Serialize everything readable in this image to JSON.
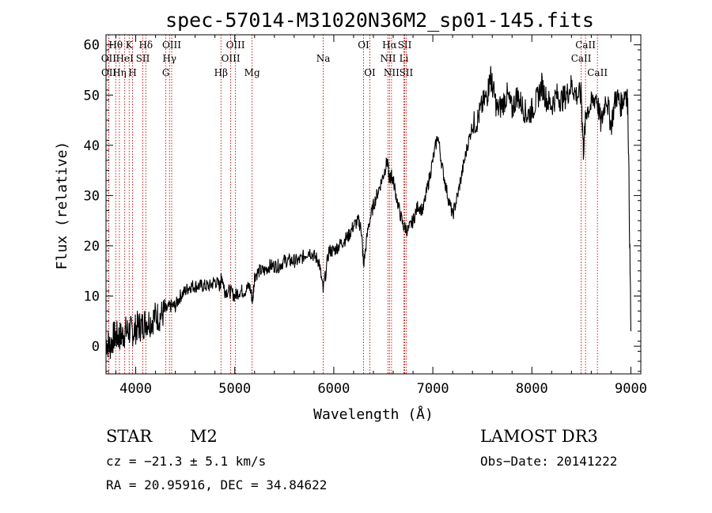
{
  "chart_data": {
    "type": "line",
    "title": "spec-57014-M31020N36M2_sp01-145.fits",
    "xlabel": "Wavelength (Å)",
    "ylabel": "Flux (relative)",
    "xlim": [
      3700,
      9100
    ],
    "ylim": [
      -5.5,
      62
    ],
    "xticks": [
      4000,
      5000,
      6000,
      7000,
      8000,
      9000
    ],
    "yticks": [
      0,
      10,
      20,
      30,
      40,
      50,
      60
    ],
    "grid": false,
    "series": [
      {
        "name": "spectrum",
        "x": [
          3700,
          3740,
          3780,
          3820,
          3860,
          3900,
          3940,
          3980,
          4020,
          4060,
          4100,
          4150,
          4200,
          4250,
          4300,
          4350,
          4400,
          4450,
          4500,
          4550,
          4600,
          4650,
          4700,
          4750,
          4800,
          4850,
          4870,
          4900,
          4950,
          5000,
          5050,
          5100,
          5150,
          5180,
          5200,
          5250,
          5300,
          5350,
          5400,
          5450,
          5500,
          5550,
          5600,
          5650,
          5700,
          5750,
          5800,
          5850,
          5893,
          5950,
          6000,
          6050,
          6100,
          6150,
          6200,
          6250,
          6280,
          6300,
          6350,
          6400,
          6450,
          6500,
          6540,
          6563,
          6580,
          6600,
          6650,
          6700,
          6750,
          6800,
          6850,
          6900,
          6950,
          7000,
          7050,
          7100,
          7150,
          7200,
          7250,
          7300,
          7350,
          7400,
          7450,
          7500,
          7550,
          7580,
          7600,
          7650,
          7700,
          7750,
          7800,
          7850,
          7900,
          7950,
          8000,
          8050,
          8100,
          8150,
          8200,
          8250,
          8300,
          8350,
          8400,
          8450,
          8500,
          8520,
          8550,
          8600,
          8650,
          8700,
          8750,
          8800,
          8850,
          8900,
          8950,
          8970,
          9000
        ],
        "values": [
          1,
          0,
          2,
          2,
          2,
          3,
          3,
          3,
          4,
          4,
          5,
          5,
          6,
          6,
          7,
          8,
          8,
          10,
          11,
          12,
          12,
          12,
          12,
          12,
          13,
          12,
          14,
          11,
          11,
          10,
          11,
          11,
          12,
          9,
          14,
          15,
          15,
          16,
          16,
          16,
          17,
          17,
          17,
          17,
          18,
          19,
          18,
          17,
          11,
          19,
          19,
          20,
          21,
          22,
          24,
          25,
          23,
          16,
          24,
          28,
          31,
          34,
          37,
          33,
          34,
          33,
          28,
          24,
          23,
          25,
          28,
          27,
          32,
          37,
          42,
          35,
          30,
          26,
          30,
          35,
          40,
          44,
          45,
          48,
          50,
          54,
          52,
          47,
          48,
          50,
          47,
          50,
          48,
          46,
          47,
          49,
          52,
          49,
          48,
          50,
          49,
          50,
          52,
          50,
          50,
          39,
          47,
          48,
          50,
          44,
          50,
          44,
          50,
          48,
          51,
          48,
          3
        ]
      }
    ],
    "line_labels": [
      {
        "text": "Hθ",
        "wl": 3798,
        "row": 1
      },
      {
        "text": "Hη",
        "wl": 3835,
        "row": 3
      },
      {
        "text": "OII",
        "wl": 3727,
        "row": 2
      },
      {
        "text": "OII",
        "wl": 3729,
        "row": 3
      },
      {
        "text": "HeI",
        "wl": 3889,
        "row": 2
      },
      {
        "text": "K",
        "wl": 3934,
        "row": 1
      },
      {
        "text": "H",
        "wl": 3968,
        "row": 3
      },
      {
        "text": "SII",
        "wl": 4072,
        "row": 2
      },
      {
        "text": "Hδ",
        "wl": 4102,
        "row": 1
      },
      {
        "text": "G",
        "wl": 4304,
        "row": 3
      },
      {
        "text": "Hγ",
        "wl": 4341,
        "row": 2
      },
      {
        "text": "OIII",
        "wl": 4363,
        "row": 1
      },
      {
        "text": "Hβ",
        "wl": 4861,
        "row": 3
      },
      {
        "text": "OIII",
        "wl": 4959,
        "row": 2
      },
      {
        "text": "OIII",
        "wl": 5007,
        "row": 1
      },
      {
        "text": "Mg",
        "wl": 5175,
        "row": 3
      },
      {
        "text": "Na",
        "wl": 5893,
        "row": 2
      },
      {
        "text": "OI",
        "wl": 6300,
        "row": 1
      },
      {
        "text": "OI",
        "wl": 6364,
        "row": 3
      },
      {
        "text": "NII",
        "wl": 6548,
        "row": 2
      },
      {
        "text": "Hα",
        "wl": 6563,
        "row": 1
      },
      {
        "text": "NII",
        "wl": 6583,
        "row": 3
      },
      {
        "text": "SII",
        "wl": 6716,
        "row": 1
      },
      {
        "text": "Li",
        "wl": 6708,
        "row": 2
      },
      {
        "text": "SII",
        "wl": 6731,
        "row": 3
      },
      {
        "text": "CaII",
        "wl": 8498,
        "row": 2
      },
      {
        "text": "CaII",
        "wl": 8542,
        "row": 1
      },
      {
        "text": "CaII",
        "wl": 8662,
        "row": 3
      }
    ],
    "line_color": "#cc0000"
  },
  "info": {
    "class": "STAR",
    "subclass": "M2",
    "survey": "LAMOST DR3",
    "cz": "cz = −21.3 ± 5.1 km/s",
    "obs_date": "Obs−Date: 20141222",
    "radec": "RA =  20.95916, DEC =  34.84622"
  }
}
